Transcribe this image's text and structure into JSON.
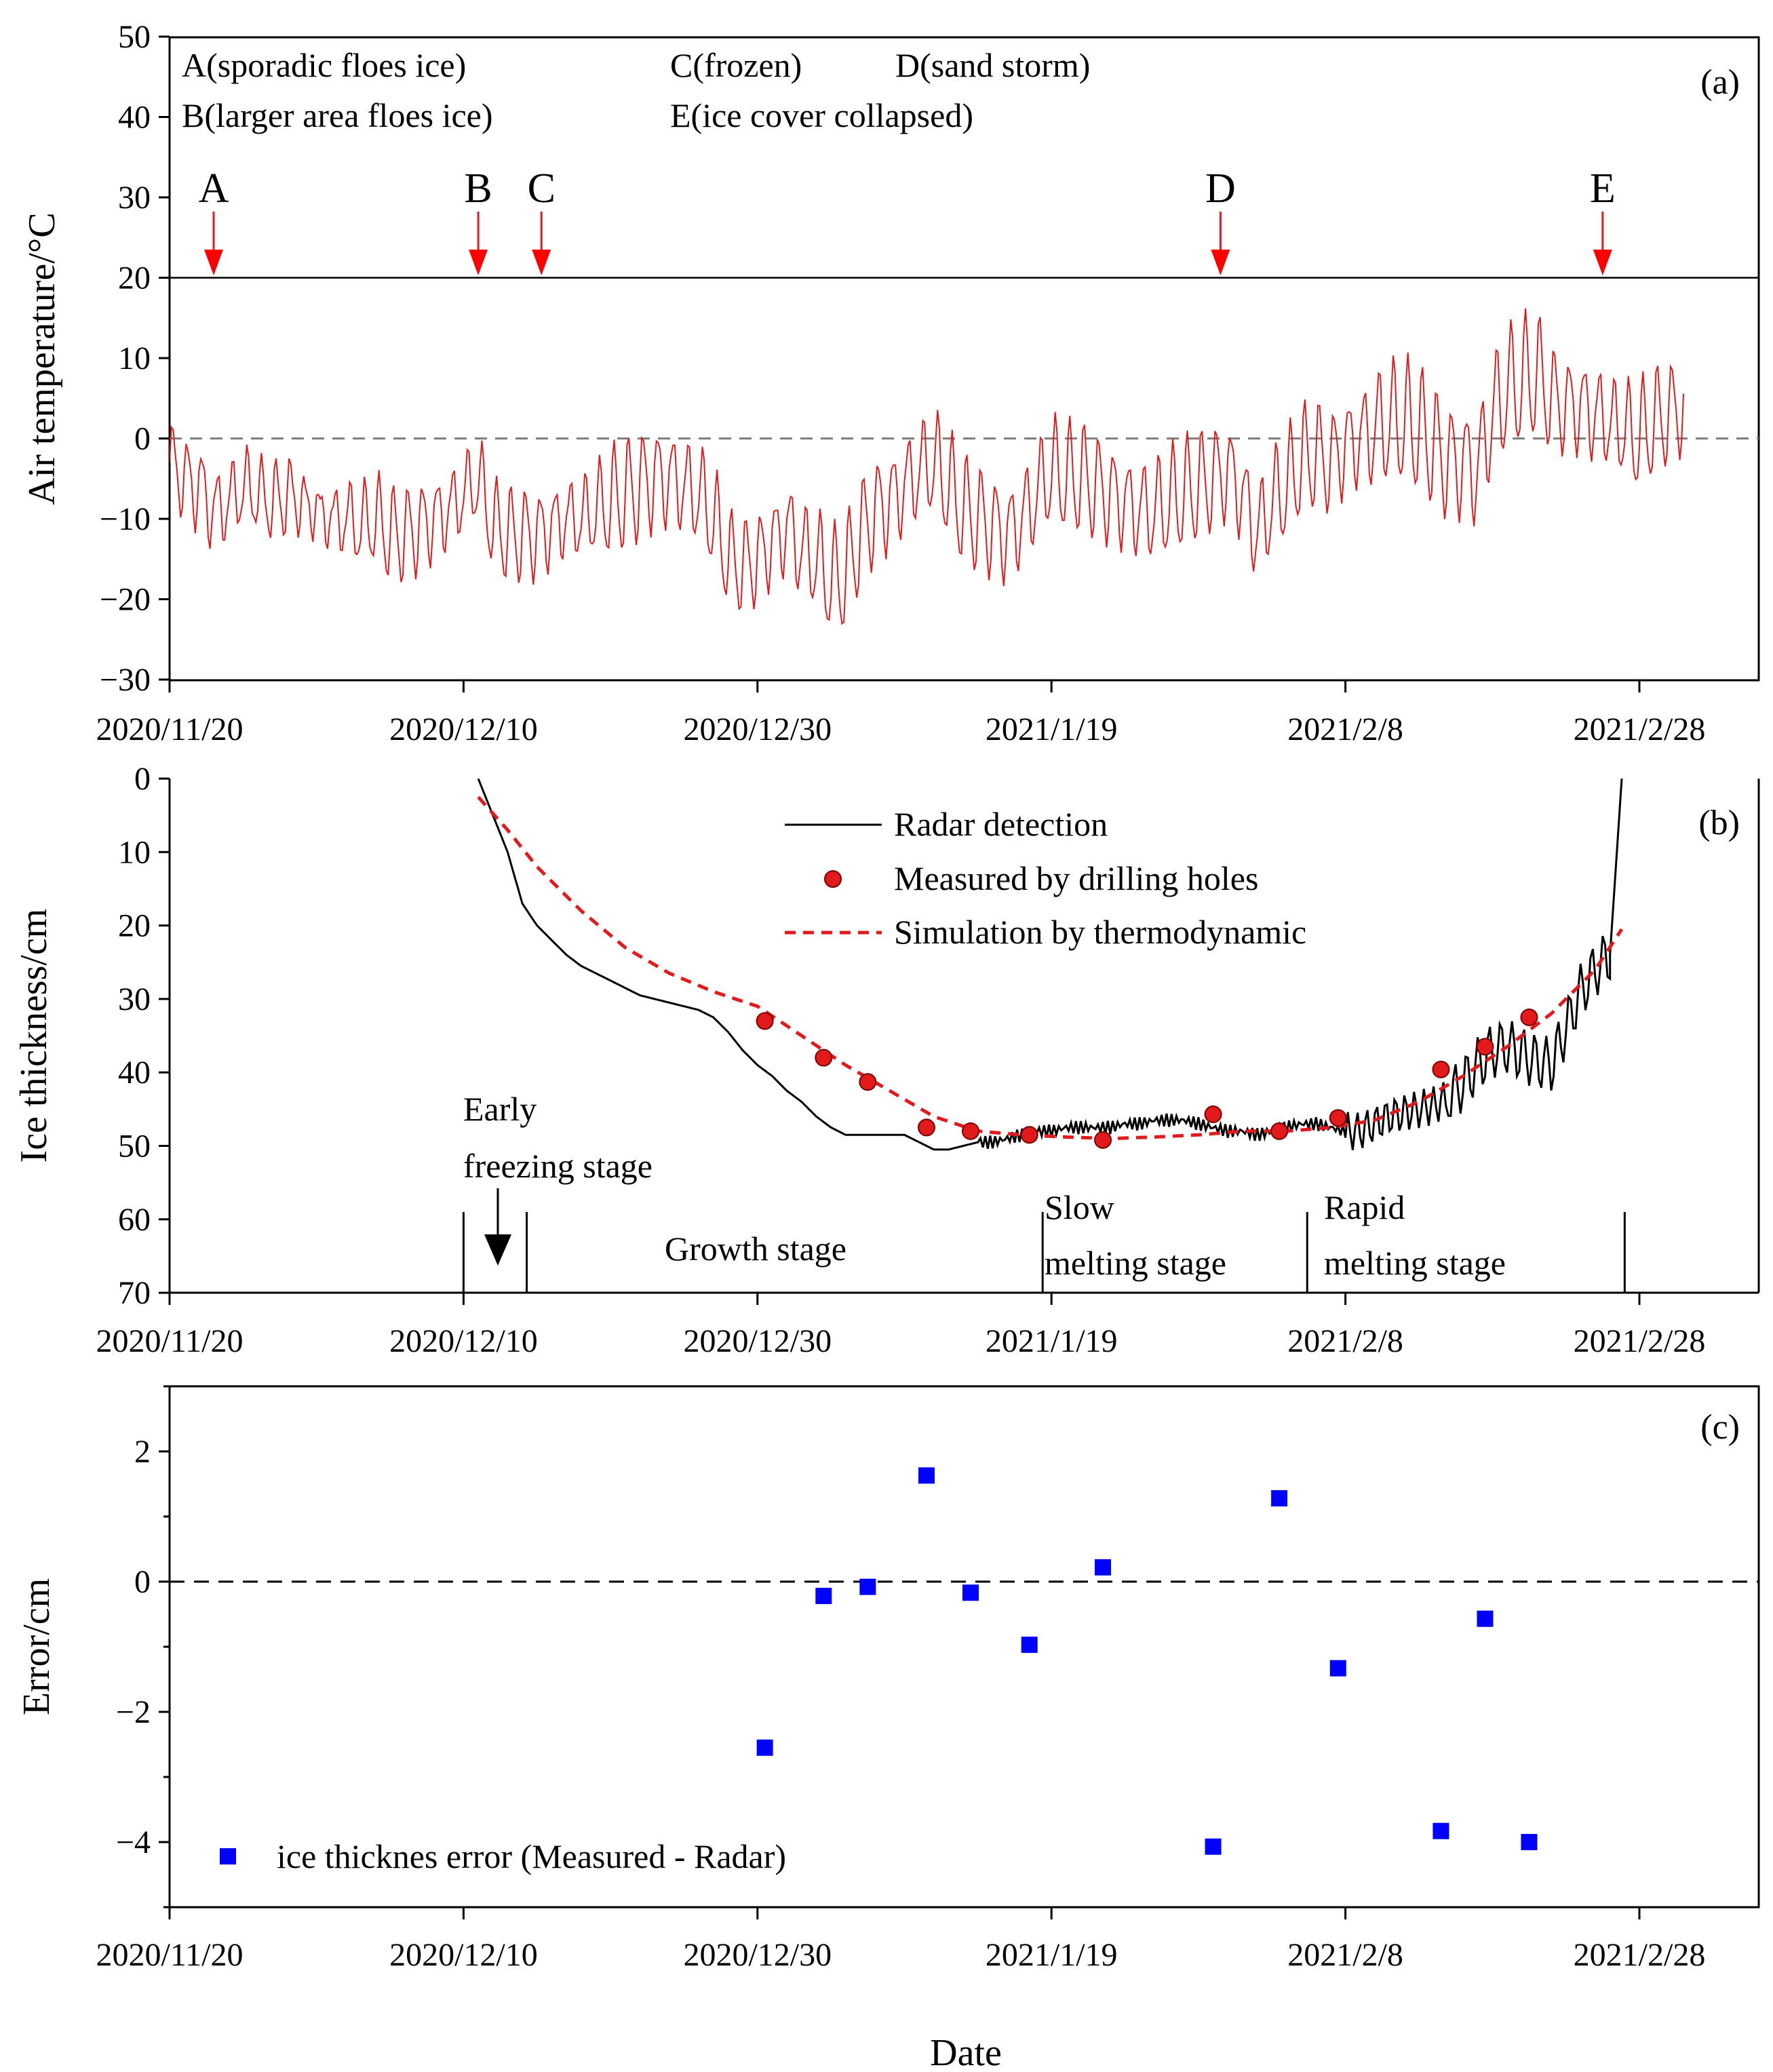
{
  "chart_data": [
    {
      "panel": "(a)",
      "type": "line",
      "ylabel": "Air temperature/°C",
      "ylim": [
        -30,
        50
      ],
      "yticks": [
        -30,
        -20,
        -10,
        0,
        10,
        20,
        30,
        40,
        50
      ],
      "ytick_labels": [
        "−30",
        "−20",
        "−10",
        "0",
        "10",
        "20",
        "30",
        "40",
        "50"
      ],
      "xlim_days": [
        0,
        103
      ],
      "xticks_days": [
        0,
        20,
        40,
        60,
        80,
        100
      ],
      "xtick_labels": [
        "2020/11/20",
        "2020/12/10",
        "2020/12/30",
        "2021/1/19",
        "2021/2/8",
        "2021/2/28"
      ],
      "reference_lines": [
        {
          "y": 0,
          "style": "dashed gray"
        },
        {
          "y": 20,
          "style": "solid black"
        }
      ],
      "legend_text": [
        "A(sporadic floes ice)",
        "B(larger area floes ice)",
        "C(frozen)",
        "D(sand storm)",
        "E(ice cover collapsed)"
      ],
      "events": [
        {
          "letter": "A",
          "day": 3
        },
        {
          "letter": "B",
          "day": 21
        },
        {
          "letter": "C",
          "day": 25.3
        },
        {
          "letter": "D",
          "day": 71.5
        },
        {
          "letter": "E",
          "day": 97.5
        }
      ],
      "series": [
        {
          "name": "Air temperature",
          "color": "#e31a1c",
          "x_days": [
            0,
            1,
            2,
            3,
            4,
            5,
            6,
            7,
            8,
            9,
            10,
            11,
            12,
            13,
            14,
            15,
            16,
            17,
            18,
            19,
            20,
            21,
            22,
            23,
            24,
            25,
            26,
            27,
            28,
            29,
            30,
            31,
            32,
            33,
            34,
            35,
            36,
            37,
            38,
            39,
            40,
            41,
            42,
            43,
            44,
            45,
            46,
            47,
            48,
            49,
            50,
            51,
            52,
            53,
            54,
            55,
            56,
            57,
            58,
            59,
            60,
            61,
            62,
            63,
            64,
            65,
            66,
            67,
            68,
            69,
            70,
            71,
            72,
            73,
            74,
            75,
            76,
            77,
            78,
            79,
            80,
            81,
            82,
            83,
            84,
            85,
            86,
            87,
            88,
            89,
            90,
            91,
            92,
            93,
            94,
            95,
            96,
            97,
            98,
            99,
            100,
            101,
            102,
            103
          ],
          "daily_mean": [
            -3,
            -5,
            -6,
            -9,
            -8,
            -6,
            -7,
            -8,
            -7,
            -8,
            -9,
            -10,
            -10,
            -11,
            -10,
            -12,
            -12,
            -11,
            -10,
            -9,
            -7,
            -5,
            -11,
            -12,
            -12,
            -12,
            -11,
            -10,
            -10,
            -9,
            -8,
            -7,
            -6,
            -5,
            -5,
            -6,
            -7,
            -10,
            -15,
            -16,
            -15,
            -13,
            -11,
            -14,
            -15,
            -18,
            -17,
            -12,
            -9,
            -8,
            -6,
            -4,
            -3,
            -6,
            -9,
            -10,
            -11,
            -12,
            -10,
            -7,
            -4,
            -5,
            -5,
            -6,
            -7,
            -8,
            -9,
            -9,
            -8,
            -7,
            -6,
            -5,
            -4,
            -7,
            -12,
            -8,
            -6,
            -3,
            -2,
            -3,
            -1,
            0,
            1,
            2,
            2,
            1,
            -1,
            -3,
            -3,
            -4,
            3,
            6,
            7,
            8,
            5,
            4,
            4,
            3,
            2,
            1,
            0,
            2,
            3,
            4
          ],
          "daily_amplitude": [
            4,
            4,
            5,
            5,
            5,
            5,
            4,
            4,
            4,
            3,
            3,
            4,
            5,
            5,
            5,
            5,
            5,
            5,
            5,
            5,
            5,
            5,
            5,
            5,
            5,
            5,
            5,
            5,
            5,
            5,
            6,
            6,
            6,
            6,
            6,
            6,
            6,
            6,
            5,
            5,
            5,
            5,
            6,
            6,
            6,
            6,
            6,
            6,
            6,
            6,
            6,
            6,
            6,
            6,
            6,
            6,
            6,
            6,
            6,
            6,
            6,
            6,
            6,
            6,
            6,
            6,
            6,
            6,
            6,
            6,
            6,
            6,
            6,
            6,
            6,
            6,
            6,
            6,
            6,
            6,
            6,
            6,
            7,
            7,
            7,
            7,
            7,
            7,
            7,
            7,
            7,
            7,
            7,
            7,
            6,
            6,
            6,
            6,
            5,
            5,
            6,
            6,
            6,
            6
          ]
        }
      ]
    },
    {
      "panel": "(b)",
      "type": "line",
      "ylabel": "Ice thickness/cm",
      "ylim": [
        0,
        70
      ],
      "y_inverted": true,
      "yticks": [
        0,
        10,
        20,
        30,
        40,
        50,
        60,
        70
      ],
      "ytick_labels": [
        "0",
        "10",
        "20",
        "30",
        "40",
        "50",
        "60",
        "70"
      ],
      "xlim_days": [
        0,
        103
      ],
      "xticks_days": [
        0,
        20,
        40,
        60,
        80,
        100
      ],
      "xtick_labels": [
        "2020/11/20",
        "2020/12/10",
        "2020/12/30",
        "2021/1/19",
        "2021/2/8",
        "2021/2/28"
      ],
      "series": [
        {
          "name": "Radar detection",
          "color": "#000000",
          "style": "solid",
          "x_days": [
            21,
            22,
            23,
            24,
            25,
            26,
            27,
            28,
            29,
            30,
            31,
            32,
            33,
            34,
            35,
            36,
            37,
            38,
            39,
            40,
            41,
            42,
            43,
            44,
            45,
            46,
            47,
            48,
            49,
            50,
            51,
            52,
            53,
            54,
            55,
            56,
            57,
            58,
            59,
            60,
            61,
            62,
            63,
            64,
            65,
            66,
            67,
            68,
            69,
            70,
            71,
            72,
            73,
            74,
            75,
            76,
            77,
            78,
            79,
            80,
            81,
            82,
            83,
            84,
            85,
            86,
            87,
            88,
            89,
            90,
            91,
            92,
            93,
            94,
            95,
            96,
            97,
            98,
            98.8
          ],
          "values": [
            0,
            5,
            10,
            17,
            20,
            22,
            24,
            25.5,
            26.5,
            27.5,
            28.5,
            29.5,
            30,
            30.5,
            31,
            31.5,
            32.5,
            34.5,
            37,
            39,
            40.5,
            42.5,
            44,
            46,
            47.5,
            48.5,
            48.5,
            48.5,
            48.5,
            48.5,
            49.5,
            50.5,
            50.5,
            50,
            49.5,
            49.5,
            49,
            48.5,
            48,
            48,
            47.5,
            47.5,
            47.5,
            47.5,
            47,
            47,
            46.5,
            46.5,
            46.5,
            47,
            47.5,
            48,
            48,
            48.5,
            48,
            47.5,
            47,
            47,
            47.5,
            48,
            48,
            47,
            46,
            45.5,
            45,
            44.5,
            43.5,
            41.5,
            39,
            37,
            36.5,
            37.5,
            38.5,
            39,
            34,
            29,
            26,
            24,
            0
          ]
        },
        {
          "name": "Measured by drilling holes",
          "color": "#e31a1c",
          "style": "markers",
          "x_days": [
            40.5,
            44.5,
            47.5,
            51.5,
            54.5,
            58.5,
            63.5,
            71,
            75.5,
            79.5,
            86.5,
            89.5,
            92.5
          ],
          "values": [
            33,
            38,
            41.3,
            47.5,
            48,
            48.5,
            49.2,
            45.7,
            48,
            46.2,
            39.6,
            36.5,
            32.5
          ]
        },
        {
          "name": "Simulation by thermodynamic",
          "color": "#e31a1c",
          "style": "dashed",
          "x_days": [
            21,
            23,
            25,
            28,
            31,
            34,
            37,
            40,
            43,
            46,
            49,
            52,
            55,
            58,
            61,
            64,
            67,
            70,
            73,
            76,
            79,
            82,
            85,
            88,
            91,
            94,
            97,
            98.8
          ],
          "values": [
            2.5,
            7,
            12,
            18,
            23,
            26.5,
            29,
            31,
            35,
            39,
            42.5,
            46,
            48,
            48.5,
            48.8,
            49,
            48.8,
            48.5,
            48,
            48,
            47.5,
            46.5,
            44,
            40.5,
            36.5,
            32,
            26,
            20.5
          ]
        }
      ],
      "stage_boundaries_days": [
        20,
        24.3,
        59.4,
        77.4,
        99
      ]
    },
    {
      "panel": "(c)",
      "type": "scatter",
      "ylabel": "Error/cm",
      "xlabel": "Date",
      "ylim": [
        -5,
        3
      ],
      "yticks": [
        -4,
        -2,
        0,
        2
      ],
      "ytick_labels": [
        "−4",
        "−2",
        "0",
        "2"
      ],
      "minor_yticks": [
        -5,
        -3,
        -1,
        1,
        3
      ],
      "xlim_days": [
        0,
        103
      ],
      "xticks_days": [
        0,
        20,
        40,
        60,
        80,
        100
      ],
      "xtick_labels": [
        "2020/11/20",
        "2020/12/10",
        "2020/12/30",
        "2021/1/19",
        "2021/2/8",
        "2021/2/28"
      ],
      "reference_lines": [
        {
          "y": 0,
          "style": "dashed black"
        }
      ],
      "series": [
        {
          "name": "ice thicknes error (Measured - Radar)",
          "color": "#0000ff",
          "marker": "square",
          "x_days": [
            40.5,
            44.5,
            47.5,
            51.5,
            54.5,
            58.5,
            63.5,
            71,
            75.5,
            79.5,
            86.5,
            89.5,
            92.5
          ],
          "values": [
            -2.55,
            -0.22,
            -0.08,
            1.63,
            -0.17,
            -0.97,
            0.22,
            -4.07,
            1.28,
            -1.33,
            -3.83,
            -0.57,
            -4.0
          ]
        }
      ]
    }
  ],
  "panel_a": {
    "label": "(a)",
    "ylabel": "Air temperature/°C",
    "legend_lines": [
      "A(sporadic floes ice)",
      "B(larger area floes ice)",
      "C(frozen)",
      "D(sand storm)",
      "E(ice cover collapsed)"
    ]
  },
  "panel_b": {
    "label": "(b)",
    "ylabel": "Ice thickness/cm",
    "legend": [
      "Radar detection",
      "Measured by drilling holes",
      "Simulation by thermodynamic"
    ],
    "stages": {
      "early_line1": "Early",
      "early_line2": "freezing stage",
      "growth": "Growth stage",
      "slow_line1": "Slow",
      "slow_line2": "melting stage",
      "rapid_line1": "Rapid",
      "rapid_line2": "melting stage"
    }
  },
  "panel_c": {
    "label": "(c)",
    "ylabel": "Error/cm",
    "legend": "ice thicknes error (Measured - Radar)",
    "xlabel": "Date"
  }
}
